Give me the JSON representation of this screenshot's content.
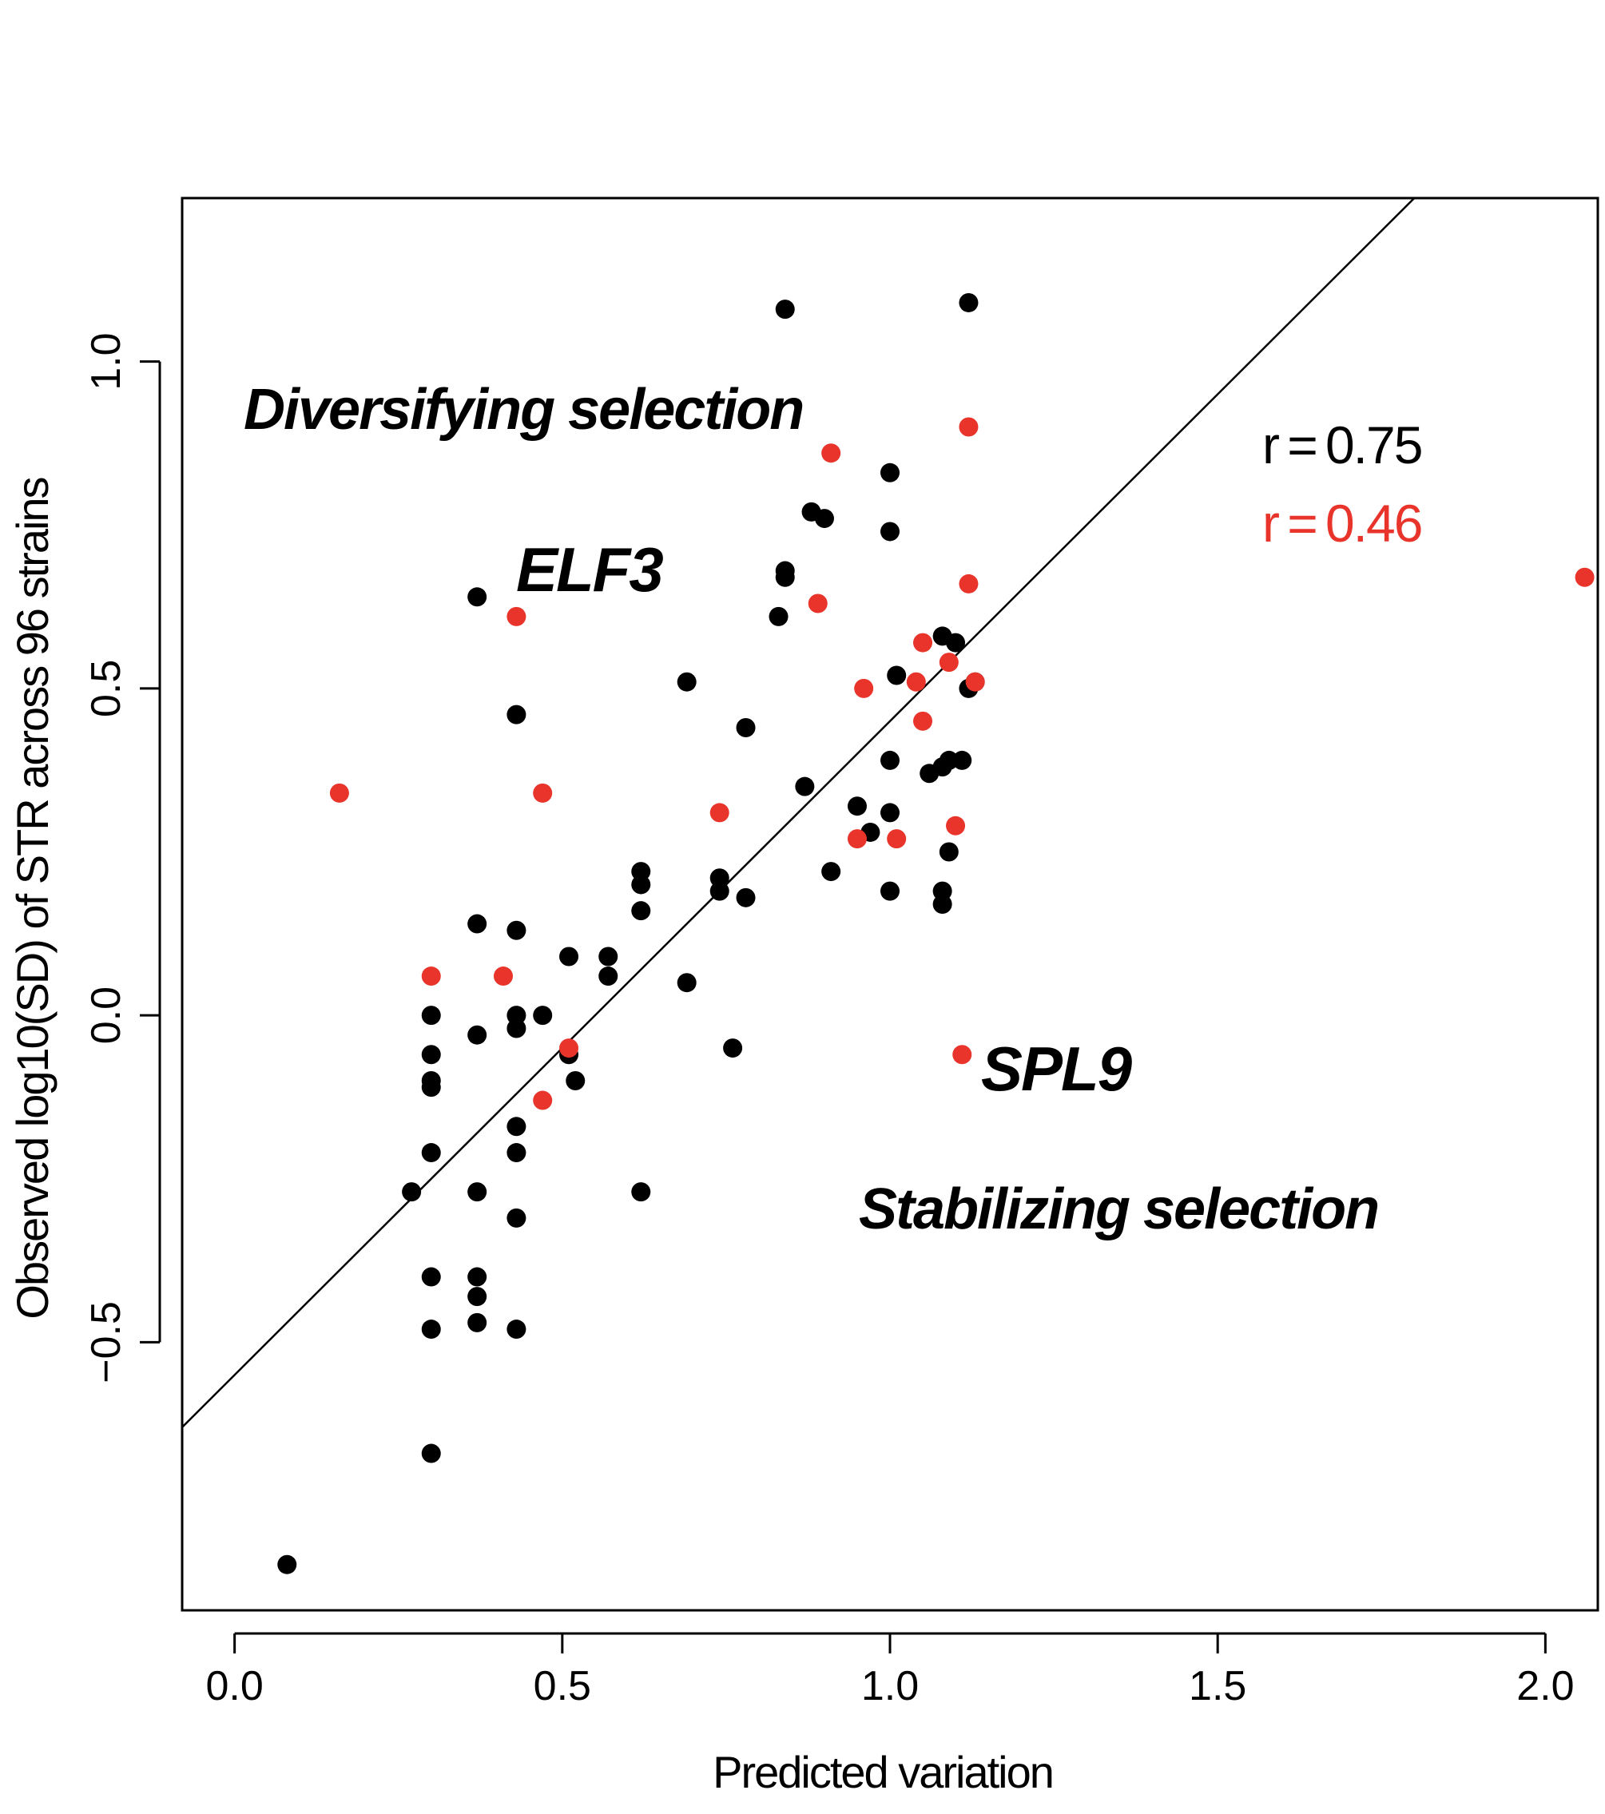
{
  "chart_data": {
    "type": "scatter",
    "xlabel": "Predicted variation",
    "ylabel": "Observed log10(SD) of STR across 96 strains",
    "xlim": [
      -0.08,
      2.08
    ],
    "ylim": [
      -0.91,
      1.25
    ],
    "x_ticks": [
      "0.0",
      "0.5",
      "1.0",
      "1.5",
      "2.0"
    ],
    "y_ticks": [
      "−0.5",
      "0.0",
      "0.5",
      "1.0"
    ],
    "grid": false,
    "regression_line": {
      "intercept": -0.55,
      "slope": 1.0
    },
    "annotations": {
      "diversifying": "Diversifying selection",
      "stabilizing": "Stabilizing selection",
      "elf3": "ELF3",
      "spl9": "SPL9"
    },
    "stats": [
      {
        "text": "r = 0.75",
        "color": "#000000"
      },
      {
        "text": "r = 0.46",
        "color": "#e8342a"
      }
    ],
    "series": [
      {
        "color": "#000000",
        "points": [
          [
            0.08,
            -0.84
          ],
          [
            0.27,
            -0.27
          ],
          [
            0.3,
            0.0
          ],
          [
            0.3,
            -0.06
          ],
          [
            0.3,
            -0.1
          ],
          [
            0.3,
            -0.11
          ],
          [
            0.3,
            -0.21
          ],
          [
            0.3,
            -0.4
          ],
          [
            0.3,
            -0.48
          ],
          [
            0.3,
            -0.67
          ],
          [
            0.37,
            0.64
          ],
          [
            0.37,
            0.14
          ],
          [
            0.37,
            -0.03
          ],
          [
            0.37,
            -0.27
          ],
          [
            0.37,
            -0.4
          ],
          [
            0.37,
            -0.43
          ],
          [
            0.37,
            -0.47
          ],
          [
            0.43,
            0.46
          ],
          [
            0.43,
            0.13
          ],
          [
            0.43,
            0.0
          ],
          [
            0.43,
            -0.02
          ],
          [
            0.43,
            -0.17
          ],
          [
            0.43,
            -0.21
          ],
          [
            0.43,
            -0.31
          ],
          [
            0.43,
            -0.48
          ],
          [
            0.47,
            0.0
          ],
          [
            0.51,
            0.09
          ],
          [
            0.51,
            -0.06
          ],
          [
            0.52,
            -0.1
          ],
          [
            0.57,
            0.09
          ],
          [
            0.57,
            0.06
          ],
          [
            0.62,
            0.22
          ],
          [
            0.62,
            0.2
          ],
          [
            0.62,
            0.16
          ],
          [
            0.62,
            -0.27
          ],
          [
            0.69,
            0.51
          ],
          [
            0.69,
            0.05
          ],
          [
            0.74,
            0.21
          ],
          [
            0.74,
            0.19
          ],
          [
            0.76,
            -0.05
          ],
          [
            0.78,
            0.44
          ],
          [
            0.78,
            0.18
          ],
          [
            0.83,
            0.61
          ],
          [
            0.84,
            1.08
          ],
          [
            0.84,
            0.68
          ],
          [
            0.84,
            0.67
          ],
          [
            0.87,
            0.35
          ],
          [
            0.88,
            0.77
          ],
          [
            0.9,
            0.76
          ],
          [
            0.91,
            0.22
          ],
          [
            0.95,
            0.32
          ],
          [
            0.97,
            0.28
          ],
          [
            1.0,
            0.83
          ],
          [
            1.0,
            0.74
          ],
          [
            1.0,
            0.39
          ],
          [
            1.0,
            0.31
          ],
          [
            1.0,
            0.19
          ],
          [
            1.01,
            0.52
          ],
          [
            1.06,
            0.37
          ],
          [
            1.08,
            0.58
          ],
          [
            1.08,
            0.38
          ],
          [
            1.08,
            0.19
          ],
          [
            1.08,
            0.17
          ],
          [
            1.09,
            0.39
          ],
          [
            1.09,
            0.25
          ],
          [
            1.1,
            0.57
          ],
          [
            1.11,
            0.39
          ],
          [
            1.12,
            1.09
          ],
          [
            1.12,
            0.5
          ],
          [
            1.13,
            0.51
          ]
        ]
      },
      {
        "color": "#e8342a",
        "points": [
          [
            0.16,
            0.34
          ],
          [
            0.3,
            0.06
          ],
          [
            0.41,
            0.06
          ],
          [
            0.43,
            0.61
          ],
          [
            0.47,
            0.34
          ],
          [
            0.47,
            -0.13
          ],
          [
            0.51,
            -0.05
          ],
          [
            0.74,
            0.31
          ],
          [
            0.89,
            0.63
          ],
          [
            0.91,
            0.86
          ],
          [
            0.95,
            0.27
          ],
          [
            0.96,
            0.5
          ],
          [
            1.01,
            0.27
          ],
          [
            1.04,
            0.51
          ],
          [
            1.05,
            0.57
          ],
          [
            1.05,
            0.45
          ],
          [
            1.09,
            0.54
          ],
          [
            1.1,
            0.29
          ],
          [
            1.11,
            -0.06
          ],
          [
            1.12,
            0.66
          ],
          [
            1.12,
            0.9
          ],
          [
            1.13,
            0.51
          ],
          [
            2.06,
            0.67
          ]
        ]
      }
    ]
  }
}
